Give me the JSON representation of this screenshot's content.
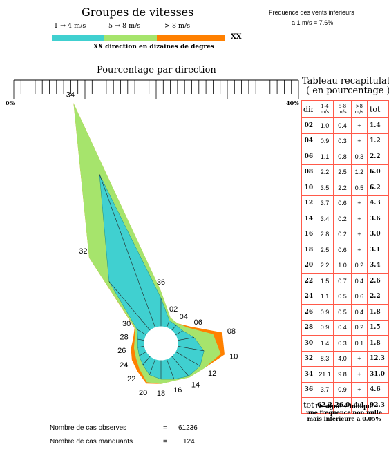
{
  "legend": {
    "title": "Groupes de vitesses",
    "groups": [
      {
        "label": "1 → 4 m/s",
        "color": "#40d0d0"
      },
      {
        "label": "5 → 8 m/s",
        "color": "#a6e46c"
      },
      {
        "label": "> 8 m/s",
        "color": "#ff8000"
      }
    ],
    "xx_label": "XX",
    "xx_note": "XX direction en dizaines de degres"
  },
  "calm": {
    "line1": "Frequence des vents inferieurs",
    "line2": "a  1 m/s =  7.6%"
  },
  "scale": {
    "title": "Pourcentage par direction",
    "min_label": "0%",
    "max_label": "40%"
  },
  "table": {
    "title_line1": "Tableau recapitulatif",
    "title_line2": "( en pourcentage )",
    "headers": {
      "dir": "dir",
      "g1": [
        "1-4",
        "m/s"
      ],
      "g2": [
        "5-8",
        "m/s"
      ],
      "g3": [
        ">8",
        "m/s"
      ],
      "tot": "tot"
    },
    "rows": [
      [
        "02",
        "1.0",
        "0.4",
        "+",
        "1.4"
      ],
      [
        "04",
        "0.9",
        "0.3",
        "+",
        "1.2"
      ],
      [
        "06",
        "1.1",
        "0.8",
        "0.3",
        "2.2"
      ],
      [
        "08",
        "2.2",
        "2.5",
        "1.2",
        "6.0"
      ],
      [
        "10",
        "3.5",
        "2.2",
        "0.5",
        "6.2"
      ],
      [
        "12",
        "3.7",
        "0.6",
        "+",
        "4.3"
      ],
      [
        "14",
        "3.4",
        "0.2",
        "+",
        "3.6"
      ],
      [
        "16",
        "2.8",
        "0.2",
        "+",
        "3.0"
      ],
      [
        "18",
        "2.5",
        "0.6",
        "+",
        "3.1"
      ],
      [
        "20",
        "2.2",
        "1.0",
        "0.2",
        "3.4"
      ],
      [
        "22",
        "1.5",
        "0.7",
        "0.4",
        "2.6"
      ],
      [
        "24",
        "1.1",
        "0.5",
        "0.6",
        "2.2"
      ],
      [
        "26",
        "0.9",
        "0.5",
        "0.4",
        "1.8"
      ],
      [
        "28",
        "0.9",
        "0.4",
        "0.2",
        "1.5"
      ],
      [
        "30",
        "1.4",
        "0.3",
        "0.1",
        "1.8"
      ],
      [
        "32",
        "8.3",
        "4.0",
        "+",
        "12.3"
      ],
      [
        "34",
        "21.1",
        "9.8",
        "+",
        "31.0"
      ],
      [
        "36",
        "3.7",
        "0.9",
        "+",
        "4.6"
      ]
    ],
    "totals": [
      "tot",
      "62.2",
      "26.0",
      "4.1",
      "92.3"
    ],
    "note": [
      "Le signe + indique",
      "une frequence non nulle",
      "mais inferieure a 0.05%"
    ]
  },
  "footer": {
    "observed_label": "Nombre de cas observes",
    "observed_eq": "=",
    "observed_value": "61236",
    "missing_label": "Nombre de cas manquants",
    "missing_eq": "=",
    "missing_value": "124"
  },
  "chart_data": {
    "type": "wind-rose",
    "directions": [
      "02",
      "04",
      "06",
      "08",
      "10",
      "12",
      "14",
      "16",
      "18",
      "20",
      "22",
      "24",
      "26",
      "28",
      "30",
      "32",
      "34",
      "36"
    ],
    "direction_unit": "dizaines de degres",
    "series": [
      {
        "name": "1 → 4 m/s",
        "color": "#40d0d0",
        "values": [
          1.0,
          0.9,
          1.1,
          2.2,
          3.5,
          3.7,
          3.4,
          2.8,
          2.5,
          2.2,
          1.5,
          1.1,
          0.9,
          0.9,
          1.4,
          8.3,
          21.1,
          3.7
        ]
      },
      {
        "name": "5 → 8 m/s",
        "color": "#a6e46c",
        "values": [
          0.4,
          0.3,
          0.8,
          2.5,
          2.2,
          0.6,
          0.2,
          0.2,
          0.6,
          1.0,
          0.7,
          0.5,
          0.5,
          0.4,
          0.3,
          4.0,
          9.8,
          0.9
        ]
      },
      {
        "name": "> 8 m/s",
        "color": "#ff8000",
        "values": [
          0.0,
          0.0,
          0.3,
          1.2,
          0.5,
          0.0,
          0.0,
          0.0,
          0.0,
          0.2,
          0.4,
          0.6,
          0.4,
          0.2,
          0.1,
          0.0,
          0.0,
          0.0
        ]
      }
    ],
    "scale_range": [
      0,
      40
    ]
  }
}
